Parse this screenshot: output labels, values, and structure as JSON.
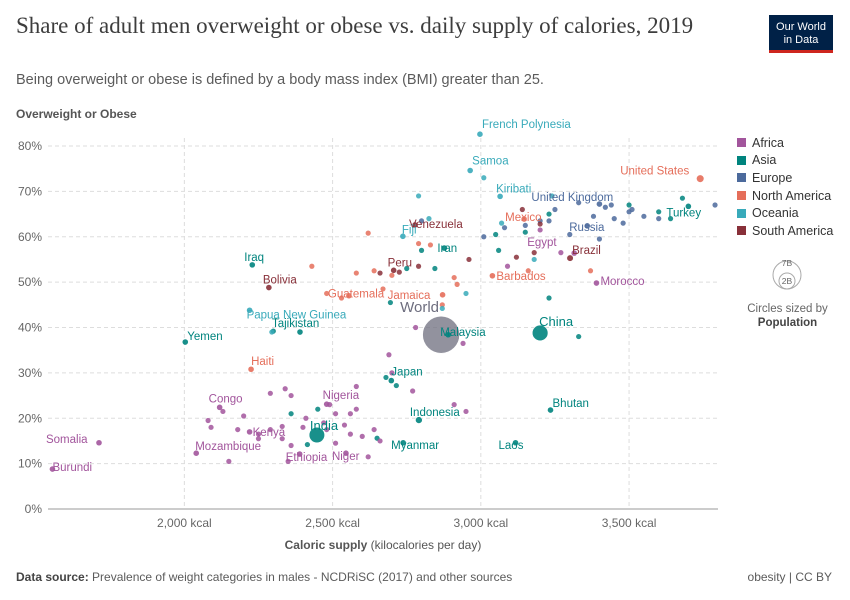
{
  "header": {
    "title": "Share of adult men overweight or obese vs. daily supply of calories, 2019",
    "subtitle": "Being overweight or obese is defined by a body mass index (BMI) greater than 25.",
    "logo_line1": "Our World",
    "logo_line2": "in Data"
  },
  "footer": {
    "source_label": "Data source:",
    "source_text": "Prevalence of weight categories in males - NCDRiSC (2017) and other sources",
    "license": "obesity | CC BY"
  },
  "legend": {
    "items": [
      {
        "label": "Africa",
        "color": "#a2559c"
      },
      {
        "label": "Asia",
        "color": "#00847e"
      },
      {
        "label": "Europe",
        "color": "#4c6a9c"
      },
      {
        "label": "North America",
        "color": "#e56e5a"
      },
      {
        "label": "Oceania",
        "color": "#38aaba"
      },
      {
        "label": "South America",
        "color": "#883039"
      }
    ],
    "size_big": "7B",
    "size_small": "2B",
    "size_caption": "Circles sized by",
    "size_caption_bold": "Population"
  },
  "chart_data": {
    "type": "scatter",
    "title": "Share of adult men overweight or obese vs. daily supply of calories, 2019",
    "xlabel": "Caloric supply",
    "xlabel_unit": "(kilocalories per day)",
    "ylabel": "Overweight or Obese",
    "xlim": [
      1540,
      3800
    ],
    "ylim": [
      0,
      83
    ],
    "x_ticks": [
      {
        "v": 2000,
        "label": "2,000 kcal"
      },
      {
        "v": 2500,
        "label": "2,500 kcal"
      },
      {
        "v": 3000,
        "label": "3,000 kcal"
      },
      {
        "v": 3500,
        "label": "3,500 kcal"
      }
    ],
    "y_ticks": [
      {
        "v": 0,
        "label": "0%"
      },
      {
        "v": 10,
        "label": "10%"
      },
      {
        "v": 20,
        "label": "20%"
      },
      {
        "v": 30,
        "label": "30%"
      },
      {
        "v": 40,
        "label": "40%"
      },
      {
        "v": 50,
        "label": "50%"
      },
      {
        "v": 60,
        "label": "60%"
      },
      {
        "v": 70,
        "label": "70%"
      },
      {
        "v": 80,
        "label": "80%"
      }
    ],
    "grid": true,
    "colors": {
      "Africa": "#a2559c",
      "Asia": "#00847e",
      "Europe": "#4c6a9c",
      "North America": "#e56e5a",
      "Oceania": "#38aaba",
      "South America": "#883039",
      "World": "#6d6d7e"
    },
    "labeled_points": [
      {
        "name": "French Polynesia",
        "continent": "Oceania",
        "x": 2997,
        "y": 82.6
      },
      {
        "name": "Samoa",
        "continent": "Oceania",
        "x": 2964,
        "y": 74.6
      },
      {
        "name": "United States",
        "continent": "North America",
        "x": 3740,
        "y": 72.8,
        "pop": 0.33
      },
      {
        "name": "Kiribati",
        "continent": "Oceania",
        "x": 3065,
        "y": 68.9
      },
      {
        "name": "United Kingdom",
        "continent": "Europe",
        "x": 3400,
        "y": 67.2
      },
      {
        "name": "Turkey",
        "continent": "Asia",
        "x": 3700,
        "y": 66.7
      },
      {
        "name": "Mexico",
        "continent": "North America",
        "x": 3146,
        "y": 63.9
      },
      {
        "name": "Venezuela",
        "continent": "South America",
        "x": 2778,
        "y": 62.6
      },
      {
        "name": "Russia",
        "continent": "Europe",
        "x": 3359,
        "y": 62.4
      },
      {
        "name": "Fiji",
        "continent": "Oceania",
        "x": 2737,
        "y": 60.1
      },
      {
        "name": "Iran",
        "continent": "Asia",
        "x": 2877,
        "y": 57.5
      },
      {
        "name": "Egypt",
        "continent": "Africa",
        "x": 3315,
        "y": 56.4
      },
      {
        "name": "Brazil",
        "continent": "South America",
        "x": 3301,
        "y": 55.3,
        "pop": 0.21
      },
      {
        "name": "Iraq",
        "continent": "Asia",
        "x": 2229,
        "y": 53.8
      },
      {
        "name": "Peru",
        "continent": "South America",
        "x": 2706,
        "y": 52.6
      },
      {
        "name": "Barbados",
        "continent": "North America",
        "x": 3039,
        "y": 51.4
      },
      {
        "name": "Morocco",
        "continent": "Africa",
        "x": 3390,
        "y": 49.8
      },
      {
        "name": "Bolivia",
        "continent": "South America",
        "x": 2285,
        "y": 48.8
      },
      {
        "name": "Guatemala",
        "continent": "North America",
        "x": 2555,
        "y": 47.0
      },
      {
        "name": "Jamaica",
        "continent": "North America",
        "x": 2871,
        "y": 47.2
      },
      {
        "name": "Papua New Guinea",
        "continent": "Oceania",
        "x": 2220,
        "y": 43.8
      },
      {
        "name": "World",
        "continent": "World",
        "x": 2866,
        "y": 38.4,
        "pop": 7.7
      },
      {
        "name": "Malaysia",
        "continent": "Asia",
        "x": 2890,
        "y": 38.4
      },
      {
        "name": "China",
        "continent": "Asia",
        "x": 3200,
        "y": 38.8,
        "pop": 1.4
      },
      {
        "name": "Tajikistan",
        "continent": "Asia",
        "x": 2390,
        "y": 39.0
      },
      {
        "name": "Yemen",
        "continent": "Asia",
        "x": 2003,
        "y": 36.8
      },
      {
        "name": "Haiti",
        "continent": "North America",
        "x": 2225,
        "y": 30.8
      },
      {
        "name": "Japan",
        "continent": "Asia",
        "x": 2698,
        "y": 28.3
      },
      {
        "name": "Nigeria",
        "continent": "Africa",
        "x": 2480,
        "y": 23.1
      },
      {
        "name": "Congo",
        "continent": "Africa",
        "x": 2119,
        "y": 22.4
      },
      {
        "name": "Bhutan",
        "continent": "Asia",
        "x": 3235,
        "y": 21.8
      },
      {
        "name": "Indonesia",
        "continent": "Asia",
        "x": 2791,
        "y": 19.6,
        "pop": 0.27
      },
      {
        "name": "Kenya",
        "continent": "Africa",
        "x": 2220,
        "y": 17.0
      },
      {
        "name": "India",
        "continent": "Asia",
        "x": 2447,
        "y": 16.3,
        "pop": 1.37
      },
      {
        "name": "Myanmar",
        "continent": "Asia",
        "x": 2738,
        "y": 14.6
      },
      {
        "name": "Laos",
        "continent": "Asia",
        "x": 3117,
        "y": 14.6
      },
      {
        "name": "Somalia",
        "continent": "Africa",
        "x": 1712,
        "y": 14.6
      },
      {
        "name": "Mozambique",
        "continent": "Africa",
        "x": 2040,
        "y": 12.3
      },
      {
        "name": "Ethiopia",
        "continent": "Africa",
        "x": 2389,
        "y": 12.1
      },
      {
        "name": "Niger",
        "continent": "Africa",
        "x": 2545,
        "y": 12.3
      },
      {
        "name": "Burundi",
        "continent": "Africa",
        "x": 1555,
        "y": 8.8
      }
    ],
    "other_points": [
      {
        "continent": "Europe",
        "x": 3500,
        "y": 65.5
      },
      {
        "continent": "Europe",
        "x": 3420,
        "y": 66.5
      },
      {
        "continent": "Europe",
        "x": 3450,
        "y": 64.0
      },
      {
        "continent": "Europe",
        "x": 3480,
        "y": 63.0
      },
      {
        "continent": "Europe",
        "x": 3380,
        "y": 64.5
      },
      {
        "continent": "Europe",
        "x": 3550,
        "y": 64.5
      },
      {
        "continent": "Europe",
        "x": 3600,
        "y": 64.0
      },
      {
        "continent": "Europe",
        "x": 3330,
        "y": 67.5
      },
      {
        "continent": "Europe",
        "x": 3250,
        "y": 66.0
      },
      {
        "continent": "Europe",
        "x": 3200,
        "y": 63.5
      },
      {
        "continent": "Europe",
        "x": 3150,
        "y": 62.5
      },
      {
        "continent": "Europe",
        "x": 3400,
        "y": 59.5
      },
      {
        "continent": "Europe",
        "x": 3300,
        "y": 60.5
      },
      {
        "continent": "Europe",
        "x": 3790,
        "y": 67.0
      },
      {
        "continent": "Europe",
        "x": 3230,
        "y": 63.5
      },
      {
        "continent": "Europe",
        "x": 3080,
        "y": 62.0
      },
      {
        "continent": "Europe",
        "x": 3010,
        "y": 60.0
      },
      {
        "continent": "Europe",
        "x": 2800,
        "y": 63.5
      },
      {
        "continent": "Europe",
        "x": 3440,
        "y": 67.0
      },
      {
        "continent": "Europe",
        "x": 3510,
        "y": 66.0
      },
      {
        "continent": "Asia",
        "x": 3680,
        "y": 68.5
      },
      {
        "continent": "Asia",
        "x": 3640,
        "y": 64.0
      },
      {
        "continent": "Asia",
        "x": 3500,
        "y": 67.0
      },
      {
        "continent": "Asia",
        "x": 3230,
        "y": 65.0
      },
      {
        "continent": "Asia",
        "x": 3150,
        "y": 61.0
      },
      {
        "continent": "Asia",
        "x": 3060,
        "y": 57.0
      },
      {
        "continent": "Asia",
        "x": 2800,
        "y": 57.0
      },
      {
        "continent": "Asia",
        "x": 2750,
        "y": 53.0
      },
      {
        "continent": "Asia",
        "x": 2845,
        "y": 53.0
      },
      {
        "continent": "Asia",
        "x": 3230,
        "y": 46.5
      },
      {
        "continent": "Asia",
        "x": 3330,
        "y": 38.0
      },
      {
        "continent": "Asia",
        "x": 2695,
        "y": 45.5
      },
      {
        "continent": "Asia",
        "x": 2300,
        "y": 39.2
      },
      {
        "continent": "Asia",
        "x": 2360,
        "y": 21.0
      },
      {
        "continent": "Asia",
        "x": 2450,
        "y": 22.0
      },
      {
        "continent": "Asia",
        "x": 2680,
        "y": 29.0
      },
      {
        "continent": "Asia",
        "x": 2715,
        "y": 27.2
      },
      {
        "continent": "Asia",
        "x": 2415,
        "y": 14.2
      },
      {
        "continent": "Asia",
        "x": 2650,
        "y": 15.6
      },
      {
        "continent": "Asia",
        "x": 3050,
        "y": 60.5
      },
      {
        "continent": "Asia",
        "x": 3600,
        "y": 65.5
      },
      {
        "continent": "North America",
        "x": 2620,
        "y": 60.8
      },
      {
        "continent": "North America",
        "x": 2790,
        "y": 58.5
      },
      {
        "continent": "North America",
        "x": 2910,
        "y": 51.0
      },
      {
        "continent": "North America",
        "x": 2920,
        "y": 49.5
      },
      {
        "continent": "North America",
        "x": 2700,
        "y": 51.5
      },
      {
        "continent": "North America",
        "x": 2580,
        "y": 52.0
      },
      {
        "continent": "North America",
        "x": 2640,
        "y": 52.5
      },
      {
        "continent": "North America",
        "x": 2480,
        "y": 47.5
      },
      {
        "continent": "North America",
        "x": 2530,
        "y": 46.5
      },
      {
        "continent": "North America",
        "x": 2430,
        "y": 53.5
      },
      {
        "continent": "North America",
        "x": 3160,
        "y": 52.5
      },
      {
        "continent": "North America",
        "x": 3370,
        "y": 52.5
      },
      {
        "continent": "North America",
        "x": 2830,
        "y": 58.2
      },
      {
        "continent": "North America",
        "x": 2670,
        "y": 48.5
      },
      {
        "continent": "North America",
        "x": 2870,
        "y": 45.0
      },
      {
        "continent": "Oceania",
        "x": 2790,
        "y": 69.0
      },
      {
        "continent": "Oceania",
        "x": 3010,
        "y": 73.0
      },
      {
        "continent": "Oceania",
        "x": 3070,
        "y": 63.0
      },
      {
        "continent": "Oceania",
        "x": 2825,
        "y": 64.0
      },
      {
        "continent": "Oceania",
        "x": 3240,
        "y": 69.0
      },
      {
        "continent": "Oceania",
        "x": 2950,
        "y": 47.5
      },
      {
        "continent": "Oceania",
        "x": 2870,
        "y": 44.2
      },
      {
        "continent": "Oceania",
        "x": 2295,
        "y": 39.0
      },
      {
        "continent": "Oceania",
        "x": 3180,
        "y": 55.0
      },
      {
        "continent": "South America",
        "x": 2660,
        "y": 52.0
      },
      {
        "continent": "South America",
        "x": 2790,
        "y": 53.5
      },
      {
        "continent": "South America",
        "x": 2725,
        "y": 52.2
      },
      {
        "continent": "South America",
        "x": 2960,
        "y": 55.0
      },
      {
        "continent": "South America",
        "x": 3120,
        "y": 55.5
      },
      {
        "continent": "South America",
        "x": 3200,
        "y": 62.8
      },
      {
        "continent": "South America",
        "x": 3180,
        "y": 56.5
      },
      {
        "continent": "South America",
        "x": 3140,
        "y": 66.0
      },
      {
        "continent": "Africa",
        "x": 3200,
        "y": 61.5
      },
      {
        "continent": "Africa",
        "x": 3090,
        "y": 53.5
      },
      {
        "continent": "Africa",
        "x": 3270,
        "y": 56.5
      },
      {
        "continent": "Africa",
        "x": 2780,
        "y": 40.0
      },
      {
        "continent": "Africa",
        "x": 2690,
        "y": 34.0
      },
      {
        "continent": "Africa",
        "x": 2700,
        "y": 30.0
      },
      {
        "continent": "Africa",
        "x": 2940,
        "y": 36.5
      },
      {
        "continent": "Africa",
        "x": 2910,
        "y": 23.0
      },
      {
        "continent": "Africa",
        "x": 2950,
        "y": 21.5
      },
      {
        "continent": "Africa",
        "x": 2340,
        "y": 26.5
      },
      {
        "continent": "Africa",
        "x": 2360,
        "y": 25.0
      },
      {
        "continent": "Africa",
        "x": 2290,
        "y": 25.5
      },
      {
        "continent": "Africa",
        "x": 2490,
        "y": 23.0
      },
      {
        "continent": "Africa",
        "x": 2510,
        "y": 21.0
      },
      {
        "continent": "Africa",
        "x": 2560,
        "y": 21.0
      },
      {
        "continent": "Africa",
        "x": 2580,
        "y": 22.0
      },
      {
        "continent": "Africa",
        "x": 2470,
        "y": 19.0
      },
      {
        "continent": "Africa",
        "x": 2410,
        "y": 20.0
      },
      {
        "continent": "Africa",
        "x": 2540,
        "y": 18.5
      },
      {
        "continent": "Africa",
        "x": 2480,
        "y": 17.5
      },
      {
        "continent": "Africa",
        "x": 2400,
        "y": 18.0
      },
      {
        "continent": "Africa",
        "x": 2080,
        "y": 19.5
      },
      {
        "continent": "Africa",
        "x": 2090,
        "y": 18.0
      },
      {
        "continent": "Africa",
        "x": 2130,
        "y": 21.5
      },
      {
        "continent": "Africa",
        "x": 2180,
        "y": 17.5
      },
      {
        "continent": "Africa",
        "x": 2250,
        "y": 16.5
      },
      {
        "continent": "Africa",
        "x": 2290,
        "y": 17.5
      },
      {
        "continent": "Africa",
        "x": 2330,
        "y": 18.2
      },
      {
        "continent": "Africa",
        "x": 2330,
        "y": 15.5
      },
      {
        "continent": "Africa",
        "x": 2360,
        "y": 14.0
      },
      {
        "continent": "Africa",
        "x": 2510,
        "y": 14.5
      },
      {
        "continent": "Africa",
        "x": 2560,
        "y": 16.5
      },
      {
        "continent": "Africa",
        "x": 2600,
        "y": 16.0
      },
      {
        "continent": "Africa",
        "x": 2640,
        "y": 17.5
      },
      {
        "continent": "Africa",
        "x": 2660,
        "y": 15.0
      },
      {
        "continent": "Africa",
        "x": 2150,
        "y": 10.5
      },
      {
        "continent": "Africa",
        "x": 2250,
        "y": 15.5
      },
      {
        "continent": "Africa",
        "x": 2200,
        "y": 20.5
      },
      {
        "continent": "Africa",
        "x": 2350,
        "y": 10.5
      },
      {
        "continent": "Africa",
        "x": 2620,
        "y": 11.5
      },
      {
        "continent": "Africa",
        "x": 2770,
        "y": 26.0
      },
      {
        "continent": "Africa",
        "x": 2580,
        "y": 27.0
      }
    ]
  }
}
